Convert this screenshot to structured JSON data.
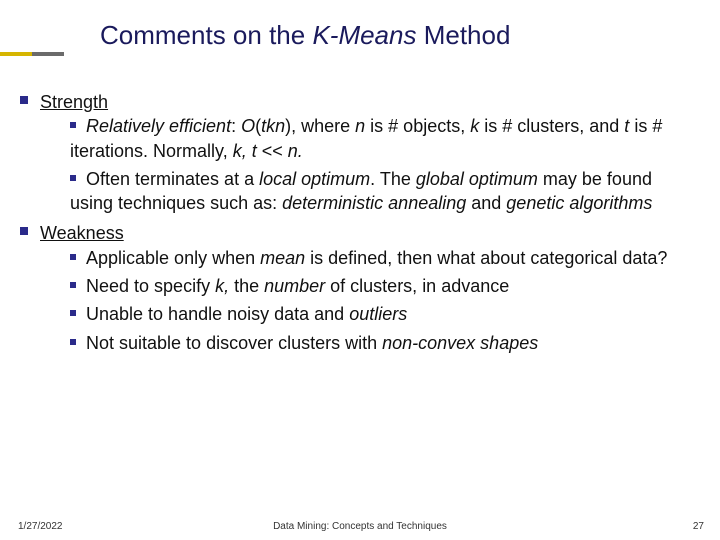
{
  "colors": {
    "title": "#1a1a5c",
    "bullet": "#2a2a8a",
    "accent_a": "#d6b500",
    "accent_b": "#6b6b6b",
    "background": "#ffffff",
    "body_text": "#111111",
    "footer_text": "#333333"
  },
  "typography": {
    "title_fontsize": 26,
    "body_fontsize": 18,
    "footer_fontsize": 10,
    "font_family": "Verdana"
  },
  "title": {
    "pre": "Comments on the ",
    "ital": "K-Means",
    "post": " Method"
  },
  "sections": [
    {
      "heading": "Strength",
      "items": [
        {
          "segments": [
            {
              "t": "Relatively efficient",
              "i": true
            },
            {
              "t": ": "
            },
            {
              "t": "O",
              "i": true
            },
            {
              "t": "("
            },
            {
              "t": "tkn",
              "i": true
            },
            {
              "t": "), where "
            },
            {
              "t": "n",
              "i": true
            },
            {
              "t": " is # objects, "
            },
            {
              "t": "k",
              "i": true
            },
            {
              "t": " is # clusters, and "
            },
            {
              "t": "t",
              "i": true
            },
            {
              "t": "  is # iterations. Normally, "
            },
            {
              "t": "k, t",
              "i": true
            },
            {
              "t": " << "
            },
            {
              "t": "n.",
              "i": true
            }
          ]
        },
        {
          "segments": [
            {
              "t": "Often terminates at a "
            },
            {
              "t": "local optimum",
              "i": true
            },
            {
              "t": ". The "
            },
            {
              "t": "global optimum",
              "i": true
            },
            {
              "t": " may be found using techniques such as: "
            },
            {
              "t": "deterministic annealing",
              "i": true
            },
            {
              "t": " and "
            },
            {
              "t": "genetic algorithms",
              "i": true
            }
          ]
        }
      ]
    },
    {
      "heading": "Weakness",
      "items": [
        {
          "segments": [
            {
              "t": "Applicable only when "
            },
            {
              "t": "mean",
              "i": true
            },
            {
              "t": " is defined, then what about categorical data?"
            }
          ]
        },
        {
          "segments": [
            {
              "t": "Need to specify "
            },
            {
              "t": "k,",
              "i": true
            },
            {
              "t": " the "
            },
            {
              "t": "number",
              "i": true
            },
            {
              "t": " of clusters, in advance"
            }
          ]
        },
        {
          "segments": [
            {
              "t": "Unable to handle noisy data and "
            },
            {
              "t": "outliers",
              "i": true
            }
          ]
        },
        {
          "segments": [
            {
              "t": "Not suitable to discover clusters with "
            },
            {
              "t": "non-convex shapes",
              "i": true
            }
          ]
        }
      ]
    }
  ],
  "footer": {
    "date": "1/27/2022",
    "center": "Data Mining: Concepts and Techniques",
    "page": "27"
  }
}
